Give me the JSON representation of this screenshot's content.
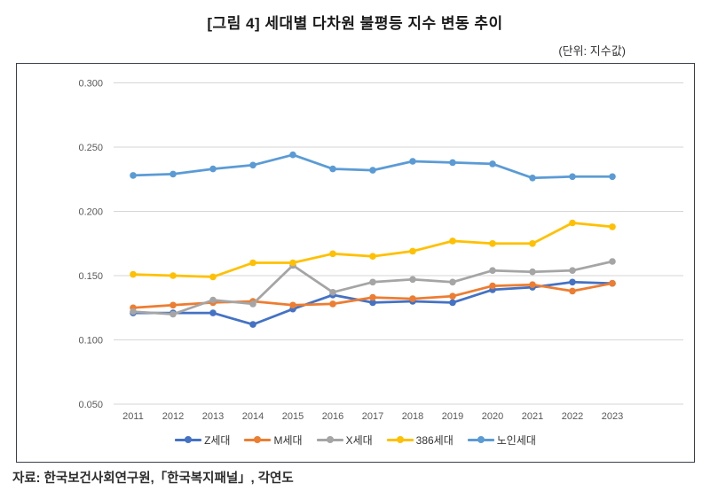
{
  "header": {
    "title": "[그림 4] 세대별 다차원 불평등 지수 변동 추이",
    "unit_note": "(단위: 지수값)"
  },
  "chart_data": {
    "type": "line",
    "x": [
      2011,
      2012,
      2013,
      2014,
      2015,
      2016,
      2017,
      2018,
      2019,
      2020,
      2021,
      2022,
      2023
    ],
    "series": [
      {
        "name": "Z세대",
        "color": "#4472C4",
        "values": [
          0.121,
          0.121,
          0.121,
          0.112,
          0.124,
          0.135,
          0.129,
          0.13,
          0.129,
          0.139,
          0.141,
          0.145,
          0.144
        ]
      },
      {
        "name": "M세대",
        "color": "#ED7D31",
        "values": [
          0.125,
          0.127,
          0.129,
          0.13,
          0.127,
          0.128,
          0.133,
          0.132,
          0.134,
          0.142,
          0.143,
          0.138,
          0.144
        ]
      },
      {
        "name": "X세대",
        "color": "#A5A5A5",
        "values": [
          0.122,
          0.12,
          0.131,
          0.128,
          0.158,
          0.137,
          0.145,
          0.147,
          0.145,
          0.154,
          0.153,
          0.154,
          0.161
        ]
      },
      {
        "name": "386세대",
        "color": "#FFC000",
        "values": [
          0.151,
          0.15,
          0.149,
          0.16,
          0.16,
          0.167,
          0.165,
          0.169,
          0.177,
          0.175,
          0.175,
          0.191,
          0.188
        ]
      },
      {
        "name": "노인세대",
        "color": "#5B9BD5",
        "values": [
          0.228,
          0.229,
          0.233,
          0.236,
          0.244,
          0.233,
          0.232,
          0.239,
          0.238,
          0.237,
          0.226,
          0.227,
          0.227
        ]
      }
    ],
    "ylim": [
      0.05,
      0.3
    ],
    "ytick_step": 0.05,
    "ytick_labels": [
      "0.050",
      "0.100",
      "0.150",
      "0.200",
      "0.250",
      "0.300"
    ],
    "grid": "horizontal",
    "legend_position": "bottom",
    "gridline_color": "#D6D6D6"
  },
  "footer": {
    "source": "자료: 한국보건사회연구원,「한국복지패널」, 각연도"
  }
}
